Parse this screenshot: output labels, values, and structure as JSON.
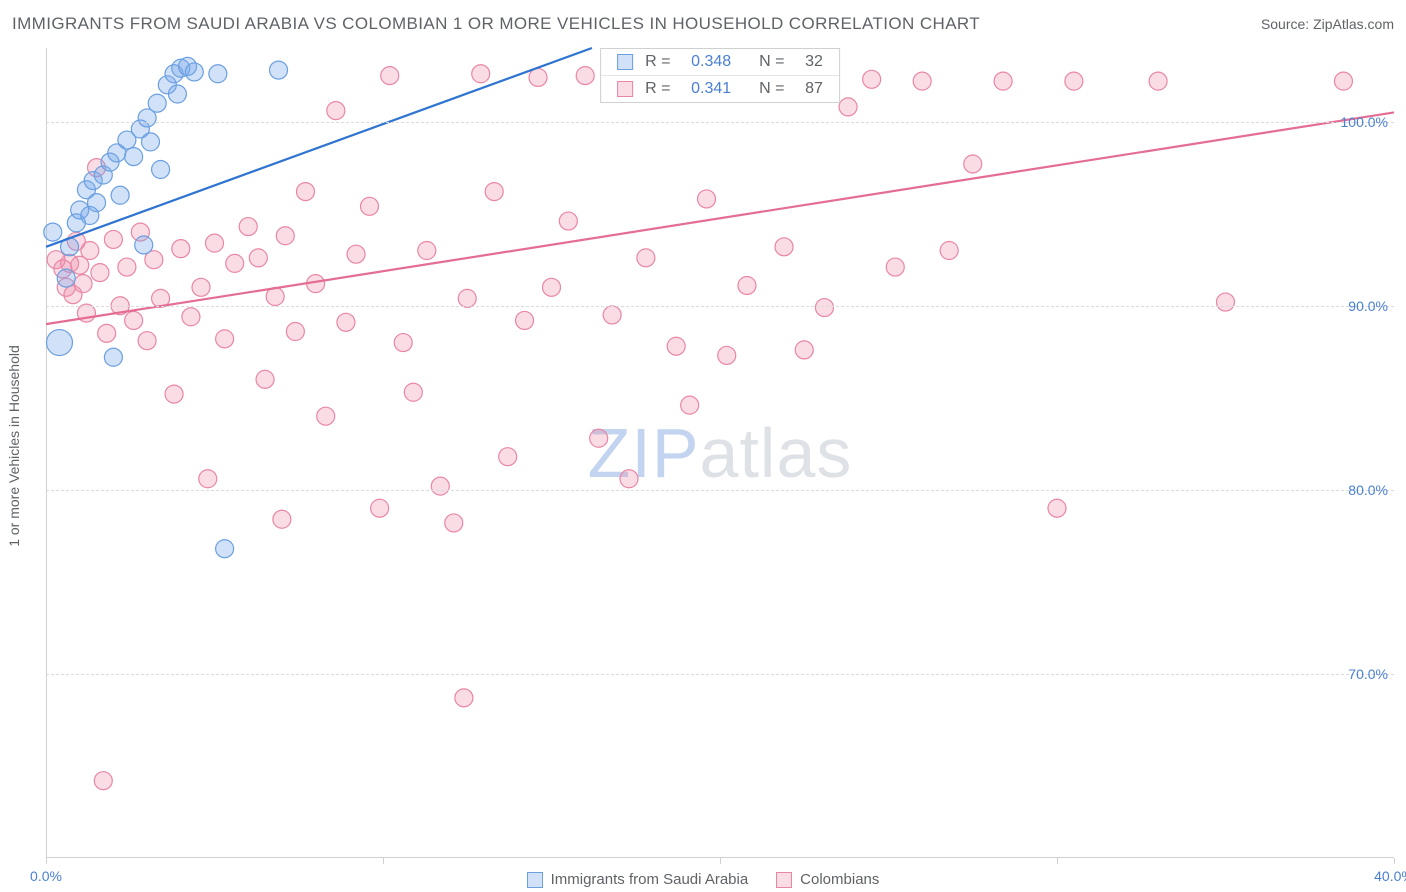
{
  "header": {
    "title": "IMMIGRANTS FROM SAUDI ARABIA VS COLOMBIAN 1 OR MORE VEHICLES IN HOUSEHOLD CORRELATION CHART",
    "source_prefix": "Source: ",
    "source_name": "ZipAtlas.com"
  },
  "chart": {
    "type": "scatter",
    "y_label": "1 or more Vehicles in Household",
    "watermark_text_a": "ZIP",
    "watermark_text_b": "atlas",
    "background_color": "#ffffff",
    "grid_color": "#d9dbde",
    "axis_color": "#d0d0d0",
    "tick_label_color": "#4a7fd6",
    "label_color": "#5f6368",
    "xlim": [
      0,
      40
    ],
    "ylim": [
      60,
      104
    ],
    "x_ticks": [
      0,
      10,
      20,
      30,
      40
    ],
    "x_tick_labels": [
      "0.0%",
      "",
      "",
      "",
      "40.0%"
    ],
    "y_ticks": [
      70,
      80,
      90,
      100
    ],
    "y_tick_labels": [
      "70.0%",
      "80.0%",
      "90.0%",
      "100.0%"
    ],
    "marker_radius": 9,
    "marker_radius_large": 13,
    "marker_stroke_width": 1.2,
    "line_width": 2.2,
    "series": [
      {
        "key": "saudi",
        "label": "Immigrants from Saudi Arabia",
        "fill": "rgba(120,170,235,0.35)",
        "stroke": "#6a9fe0",
        "line_color": "#2f74d0",
        "r_value": "0.348",
        "n_value": "32",
        "trend": {
          "x1": 0,
          "y1": 93.2,
          "x2": 16.2,
          "y2": 104
        },
        "points": [
          {
            "x": 0.4,
            "y": 88,
            "r": 13
          },
          {
            "x": 0.2,
            "y": 94
          },
          {
            "x": 0.6,
            "y": 91.5
          },
          {
            "x": 0.7,
            "y": 93.2
          },
          {
            "x": 0.9,
            "y": 94.5
          },
          {
            "x": 1.0,
            "y": 95.2
          },
          {
            "x": 1.2,
            "y": 96.3
          },
          {
            "x": 1.3,
            "y": 94.9
          },
          {
            "x": 1.4,
            "y": 96.8
          },
          {
            "x": 1.5,
            "y": 95.6
          },
          {
            "x": 1.7,
            "y": 97.1
          },
          {
            "x": 1.9,
            "y": 97.8
          },
          {
            "x": 2.1,
            "y": 98.3
          },
          {
            "x": 2.2,
            "y": 96.0
          },
          {
            "x": 2.4,
            "y": 99.0
          },
          {
            "x": 2.6,
            "y": 98.1
          },
          {
            "x": 2.8,
            "y": 99.6
          },
          {
            "x": 2.9,
            "y": 93.3
          },
          {
            "x": 3.0,
            "y": 100.2
          },
          {
            "x": 3.1,
            "y": 98.9
          },
          {
            "x": 3.3,
            "y": 101.0
          },
          {
            "x": 3.4,
            "y": 97.4
          },
          {
            "x": 3.6,
            "y": 102.0
          },
          {
            "x": 3.8,
            "y": 102.6
          },
          {
            "x": 3.9,
            "y": 101.5
          },
          {
            "x": 4.0,
            "y": 102.9
          },
          {
            "x": 4.2,
            "y": 103.0
          },
          {
            "x": 5.1,
            "y": 102.6
          },
          {
            "x": 6.9,
            "y": 102.8
          },
          {
            "x": 2.0,
            "y": 87.2
          },
          {
            "x": 5.3,
            "y": 76.8
          },
          {
            "x": 4.4,
            "y": 102.7
          }
        ]
      },
      {
        "key": "colombian",
        "label": "Colombians",
        "fill": "rgba(240,140,170,0.30)",
        "stroke": "#e986a5",
        "line_color": "#e46d93",
        "r_value": "0.341",
        "n_value": "87",
        "trend": {
          "x1": 0,
          "y1": 89.0,
          "x2": 40,
          "y2": 100.5
        },
        "points": [
          {
            "x": 0.3,
            "y": 92.5
          },
          {
            "x": 0.5,
            "y": 92.0
          },
          {
            "x": 0.6,
            "y": 91.0
          },
          {
            "x": 0.7,
            "y": 92.3
          },
          {
            "x": 0.8,
            "y": 90.6
          },
          {
            "x": 0.9,
            "y": 93.5
          },
          {
            "x": 1.0,
            "y": 92.2
          },
          {
            "x": 1.1,
            "y": 91.2
          },
          {
            "x": 1.2,
            "y": 89.6
          },
          {
            "x": 1.3,
            "y": 93.0
          },
          {
            "x": 1.5,
            "y": 97.5
          },
          {
            "x": 1.6,
            "y": 91.8
          },
          {
            "x": 1.8,
            "y": 88.5
          },
          {
            "x": 2.0,
            "y": 93.6
          },
          {
            "x": 2.2,
            "y": 90.0
          },
          {
            "x": 2.4,
            "y": 92.1
          },
          {
            "x": 2.6,
            "y": 89.2
          },
          {
            "x": 2.8,
            "y": 94.0
          },
          {
            "x": 3.0,
            "y": 88.1
          },
          {
            "x": 3.2,
            "y": 92.5
          },
          {
            "x": 3.4,
            "y": 90.4
          },
          {
            "x": 3.8,
            "y": 85.2
          },
          {
            "x": 4.0,
            "y": 93.1
          },
          {
            "x": 4.3,
            "y": 89.4
          },
          {
            "x": 4.6,
            "y": 91.0
          },
          {
            "x": 5.0,
            "y": 93.4
          },
          {
            "x": 5.3,
            "y": 88.2
          },
          {
            "x": 5.6,
            "y": 92.3
          },
          {
            "x": 6.0,
            "y": 94.3
          },
          {
            "x": 6.3,
            "y": 92.6
          },
          {
            "x": 6.5,
            "y": 86.0
          },
          {
            "x": 6.8,
            "y": 90.5
          },
          {
            "x": 7.1,
            "y": 93.8
          },
          {
            "x": 7.4,
            "y": 88.6
          },
          {
            "x": 7.7,
            "y": 96.2
          },
          {
            "x": 8.0,
            "y": 91.2
          },
          {
            "x": 8.3,
            "y": 84.0
          },
          {
            "x": 8.6,
            "y": 100.6
          },
          {
            "x": 8.9,
            "y": 89.1
          },
          {
            "x": 9.2,
            "y": 92.8
          },
          {
            "x": 9.6,
            "y": 95.4
          },
          {
            "x": 9.9,
            "y": 79.0
          },
          {
            "x": 10.2,
            "y": 102.5
          },
          {
            "x": 10.6,
            "y": 88.0
          },
          {
            "x": 10.9,
            "y": 85.3
          },
          {
            "x": 11.3,
            "y": 93.0
          },
          {
            "x": 11.7,
            "y": 80.2
          },
          {
            "x": 12.1,
            "y": 78.2
          },
          {
            "x": 12.5,
            "y": 90.4
          },
          {
            "x": 12.9,
            "y": 102.6
          },
          {
            "x": 12.4,
            "y": 68.7
          },
          {
            "x": 13.3,
            "y": 96.2
          },
          {
            "x": 13.7,
            "y": 81.8
          },
          {
            "x": 14.2,
            "y": 89.2
          },
          {
            "x": 14.6,
            "y": 102.4
          },
          {
            "x": 15.0,
            "y": 91.0
          },
          {
            "x": 15.5,
            "y": 94.6
          },
          {
            "x": 16.0,
            "y": 102.5
          },
          {
            "x": 16.4,
            "y": 82.8
          },
          {
            "x": 16.8,
            "y": 89.5
          },
          {
            "x": 17.3,
            "y": 80.6
          },
          {
            "x": 17.8,
            "y": 92.6
          },
          {
            "x": 18.2,
            "y": 102.4
          },
          {
            "x": 18.7,
            "y": 87.8
          },
          {
            "x": 19.1,
            "y": 84.6
          },
          {
            "x": 19.6,
            "y": 95.8
          },
          {
            "x": 20.2,
            "y": 87.3
          },
          {
            "x": 20.8,
            "y": 91.1
          },
          {
            "x": 21.4,
            "y": 102.3
          },
          {
            "x": 21.9,
            "y": 93.2
          },
          {
            "x": 22.5,
            "y": 87.6
          },
          {
            "x": 23.1,
            "y": 89.9
          },
          {
            "x": 23.8,
            "y": 100.8
          },
          {
            "x": 24.5,
            "y": 102.3
          },
          {
            "x": 25.2,
            "y": 92.1
          },
          {
            "x": 26.0,
            "y": 102.2
          },
          {
            "x": 26.8,
            "y": 93.0
          },
          {
            "x": 27.5,
            "y": 97.7
          },
          {
            "x": 28.4,
            "y": 102.2
          },
          {
            "x": 30.5,
            "y": 102.2
          },
          {
            "x": 30.0,
            "y": 79.0
          },
          {
            "x": 33.0,
            "y": 102.2
          },
          {
            "x": 35.0,
            "y": 90.2
          },
          {
            "x": 38.5,
            "y": 102.2
          },
          {
            "x": 1.7,
            "y": 64.2
          },
          {
            "x": 7.0,
            "y": 78.4
          },
          {
            "x": 4.8,
            "y": 80.6
          }
        ]
      }
    ]
  }
}
